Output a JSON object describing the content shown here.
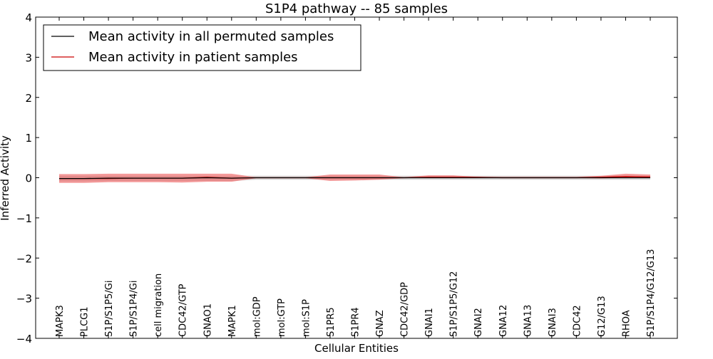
{
  "chart_data": {
    "type": "line",
    "title": "S1P4 pathway -- 85 samples",
    "xlabel": "Cellular Entities",
    "ylabel": "Inferred Activity",
    "ylim": [
      -4,
      4
    ],
    "yticks": [
      4,
      3,
      2,
      1,
      0,
      -1,
      -2,
      -3,
      -4
    ],
    "ytick_labels": [
      "4",
      "3",
      "2",
      "1",
      "0",
      "−1",
      "−2",
      "−3",
      "−4"
    ],
    "legend_position": "top-left",
    "categories": [
      "MAPK3",
      "PLCG1",
      "S1P/S1P5/Gi",
      "S1P/S1P4/Gi",
      "cell migration",
      "CDC42/GTP",
      "GNAO1",
      "MAPK1",
      "mol:GDP",
      "mol:GTP",
      "mol:S1P",
      "S1PR5",
      "S1PR4",
      "GNAZ",
      "CDC42/GDP",
      "GNAI1",
      "S1P/S1P5/G12",
      "GNAI2",
      "GNA12",
      "GNA13",
      "GNAI3",
      "CDC42",
      "G12/G13",
      "RHOA",
      "S1P/S1P4/G12/G13"
    ],
    "series": [
      {
        "name": "Mean activity in all permuted samples",
        "color": "#000000",
        "band_color": "#c8c8c8",
        "values": [
          -0.02,
          -0.02,
          -0.01,
          -0.01,
          -0.01,
          -0.01,
          0.0,
          -0.01,
          0.0,
          0.0,
          0.0,
          0.0,
          0.0,
          0.0,
          0.0,
          0.0,
          0.0,
          0.0,
          0.0,
          0.0,
          0.0,
          0.0,
          0.0,
          0.0,
          0.0
        ],
        "band_lower": [
          -0.09,
          -0.09,
          -0.08,
          -0.08,
          -0.08,
          -0.08,
          -0.08,
          -0.08,
          -0.05,
          -0.05,
          -0.05,
          -0.05,
          -0.05,
          -0.05,
          -0.05,
          -0.05,
          -0.05,
          -0.05,
          -0.05,
          -0.05,
          -0.05,
          -0.05,
          -0.05,
          -0.05,
          -0.05
        ],
        "band_upper": [
          0.05,
          0.05,
          0.05,
          0.05,
          0.05,
          0.05,
          0.05,
          0.05,
          0.05,
          0.05,
          0.05,
          0.05,
          0.05,
          0.05,
          0.05,
          0.05,
          0.05,
          0.05,
          0.05,
          0.05,
          0.05,
          0.05,
          0.05,
          0.05,
          0.05
        ]
      },
      {
        "name": "Mean activity in patient samples",
        "color": "#cc0000",
        "band_color": "#ee6666",
        "values": [
          -0.02,
          -0.02,
          -0.02,
          -0.01,
          -0.01,
          -0.01,
          0.01,
          -0.01,
          0.0,
          0.0,
          0.0,
          0.0,
          0.0,
          0.0,
          0.0,
          0.01,
          0.01,
          0.01,
          0.0,
          0.0,
          0.0,
          0.0,
          0.01,
          0.03,
          0.02
        ],
        "band_lower": [
          -0.13,
          -0.13,
          -0.11,
          -0.11,
          -0.11,
          -0.12,
          -0.1,
          -0.1,
          -0.01,
          -0.01,
          -0.01,
          -0.08,
          -0.07,
          -0.05,
          -0.01,
          -0.01,
          -0.01,
          -0.01,
          -0.01,
          -0.01,
          -0.01,
          -0.01,
          -0.02,
          0.0,
          0.0
        ],
        "band_upper": [
          0.09,
          0.09,
          0.1,
          0.1,
          0.1,
          0.1,
          0.1,
          0.1,
          0.01,
          0.01,
          0.01,
          0.08,
          0.08,
          0.08,
          0.01,
          0.06,
          0.06,
          0.02,
          0.02,
          0.02,
          0.02,
          0.02,
          0.05,
          0.1,
          0.08
        ]
      }
    ]
  }
}
